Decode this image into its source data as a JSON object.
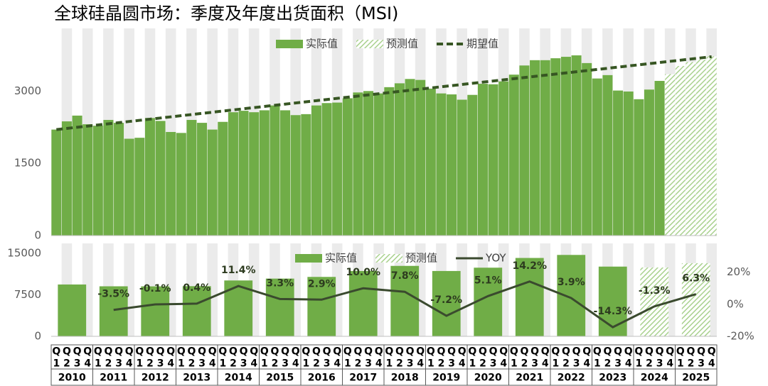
{
  "chart_data": [
    {
      "type": "bar",
      "title": "全球硅晶圆市场：季度及年度出货面积（MSI)",
      "quarter_prefix": "Q",
      "quarters": [
        "1",
        "2",
        "3",
        "4"
      ],
      "ylim": [
        0,
        4300
      ],
      "yticks": [
        0,
        1500,
        3000
      ],
      "series": [
        {
          "name": "实际值",
          "type": "bar",
          "color": "#70ad47",
          "values": [
            2200,
            2370,
            2490,
            2310,
            2280,
            2400,
            2340,
            2010,
            2030,
            2440,
            2380,
            2150,
            2130,
            2400,
            2340,
            2200,
            2360,
            2560,
            2590,
            2560,
            2600,
            2700,
            2600,
            2500,
            2520,
            2700,
            2750,
            2760,
            2850,
            2970,
            3000,
            2950,
            3080,
            3160,
            3250,
            3230,
            3050,
            2950,
            2930,
            2820,
            2920,
            3150,
            3140,
            3200,
            3340,
            3530,
            3640,
            3640,
            3680,
            3710,
            3740,
            3580,
            3260,
            3330,
            3010,
            2990,
            2830,
            3030,
            3210,
            null,
            null,
            null,
            null,
            null
          ]
        },
        {
          "name": "预测值",
          "type": "bar",
          "color": "#a9d18e",
          "hatch": true,
          "values": [
            null,
            null,
            null,
            null,
            null,
            null,
            null,
            null,
            null,
            null,
            null,
            null,
            null,
            null,
            null,
            null,
            null,
            null,
            null,
            null,
            null,
            null,
            null,
            null,
            null,
            null,
            null,
            null,
            null,
            null,
            null,
            null,
            null,
            null,
            null,
            null,
            null,
            null,
            null,
            null,
            null,
            null,
            null,
            null,
            null,
            null,
            null,
            null,
            null,
            null,
            null,
            null,
            null,
            null,
            null,
            null,
            null,
            null,
            null,
            3350,
            3520,
            3600,
            3650,
            3720
          ]
        },
        {
          "name": "期望值",
          "type": "line",
          "color": "#375623",
          "dashed": true,
          "values": [
            2200,
            2224,
            2248,
            2272,
            2296,
            2320,
            2344,
            2368,
            2392,
            2416,
            2440,
            2464,
            2488,
            2512,
            2536,
            2560,
            2584,
            2608,
            2632,
            2656,
            2680,
            2704,
            2728,
            2752,
            2776,
            2800,
            2824,
            2848,
            2872,
            2896,
            2920,
            2944,
            2968,
            2992,
            3016,
            3040,
            3064,
            3088,
            3112,
            3136,
            3160,
            3184,
            3208,
            3232,
            3256,
            3280,
            3304,
            3328,
            3352,
            3376,
            3400,
            3424,
            3448,
            3472,
            3496,
            3520,
            3544,
            3568,
            3592,
            3616,
            3640,
            3664,
            3688,
            3712
          ]
        }
      ]
    },
    {
      "type": "bar",
      "categories": [
        "2010",
        "2011",
        "2012",
        "2013",
        "2014",
        "2015",
        "2016",
        "2017",
        "2018",
        "2019",
        "2020",
        "2021",
        "2022",
        "2023",
        "2024",
        "2025"
      ],
      "ylim": [
        0,
        16800
      ],
      "yticks": [
        0,
        7500,
        15000
      ],
      "y2lim": [
        -20,
        38
      ],
      "y2ticks": [
        {
          "value": 20,
          "label": "20%"
        },
        {
          "value": 0,
          "label": "0%"
        },
        {
          "value": -20,
          "label": "-20%"
        }
      ],
      "series": [
        {
          "name": "实际值",
          "type": "bar",
          "color": "#70ad47",
          "values": [
            9370,
            9043,
            9031,
            9067,
            10098,
            10434,
            10738,
            11810,
            12732,
            11810,
            12407,
            14165,
            14713,
            12602,
            null,
            null
          ]
        },
        {
          "name": "预测值",
          "type": "bar",
          "color": "#a9d18e",
          "hatch": true,
          "values": [
            null,
            null,
            null,
            null,
            null,
            null,
            null,
            null,
            null,
            null,
            null,
            null,
            null,
            null,
            12440,
            13220
          ]
        },
        {
          "name": "YOY",
          "type": "line",
          "color": "#3a4a2e",
          "axis": "y2",
          "values": [
            null,
            -3.5,
            -0.1,
            0.4,
            11.4,
            3.3,
            2.9,
            10.0,
            7.8,
            -7.2,
            5.1,
            14.2,
            3.9,
            -14.3,
            -1.3,
            6.3
          ],
          "value_labels": [
            null,
            "-3.5%",
            "-0.1%",
            "0.4%",
            "11.4%",
            "3.3%",
            "2.9%",
            "10.0%",
            "7.8%",
            "-7.2%",
            "5.1%",
            "14.2%",
            "3.9%",
            "-14.3%",
            "-1.3%",
            "6.3%"
          ]
        }
      ]
    }
  ]
}
